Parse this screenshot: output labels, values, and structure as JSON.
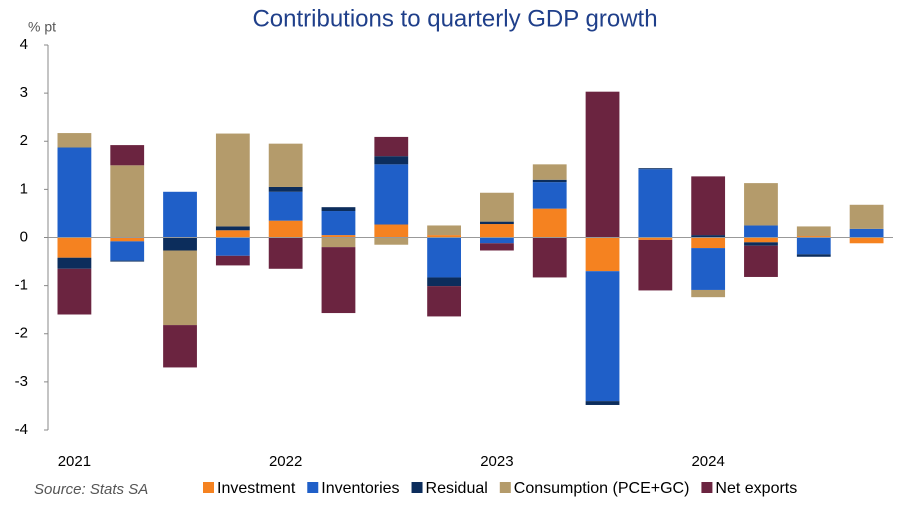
{
  "chart_data": {
    "type": "bar",
    "stacked": true,
    "title": "Contributions to quarterly GDP growth",
    "y_label": "% pt",
    "source": "Source: Stats SA",
    "categories": [
      "2021",
      null,
      null,
      null,
      "2022",
      null,
      null,
      null,
      "2023",
      null,
      null,
      null,
      "2024",
      null,
      null,
      null
    ],
    "series": [
      {
        "name": "Investment",
        "color": "#f58220",
        "values": [
          -0.42,
          -0.08,
          0,
          0.15,
          0.35,
          0.05,
          0.27,
          0.05,
          0.28,
          0.6,
          -0.7,
          -0.05,
          -0.22,
          -0.1,
          0.03,
          -0.12
        ]
      },
      {
        "name": "Inventories",
        "color": "#1f5fc8",
        "values": [
          1.87,
          -0.4,
          0.95,
          -0.38,
          0.6,
          0.5,
          1.25,
          -0.83,
          -0.12,
          0.55,
          -2.7,
          1.42,
          -0.87,
          0.25,
          -0.35,
          0.18
        ]
      },
      {
        "name": "Residual",
        "color": "#0c2d5c",
        "values": [
          -0.23,
          -0.02,
          -0.27,
          0.08,
          0.1,
          0.08,
          0.17,
          -0.18,
          0.05,
          0.05,
          -0.08,
          0.02,
          0.05,
          -0.07,
          -0.05,
          0
        ]
      },
      {
        "name": "Consumption (PCE+GC)",
        "color": "#b49b6b",
        "values": [
          0.3,
          1.5,
          -1.55,
          1.93,
          0.9,
          -0.2,
          -0.15,
          0.2,
          0.6,
          0.32,
          0,
          0,
          -0.15,
          0.88,
          0.2,
          0.5
        ]
      },
      {
        "name": "Net exports",
        "color": "#6b2440",
        "values": [
          -0.95,
          0.42,
          -0.88,
          -0.2,
          -0.65,
          -1.37,
          0.4,
          -0.63,
          -0.15,
          -0.83,
          3.03,
          -1.05,
          1.22,
          -0.65,
          0,
          0
        ]
      }
    ],
    "ylim": [
      -4,
      4
    ],
    "yticks": [
      -4,
      -3,
      -2,
      -1,
      0,
      1,
      2,
      3,
      4
    ],
    "grid": false
  }
}
